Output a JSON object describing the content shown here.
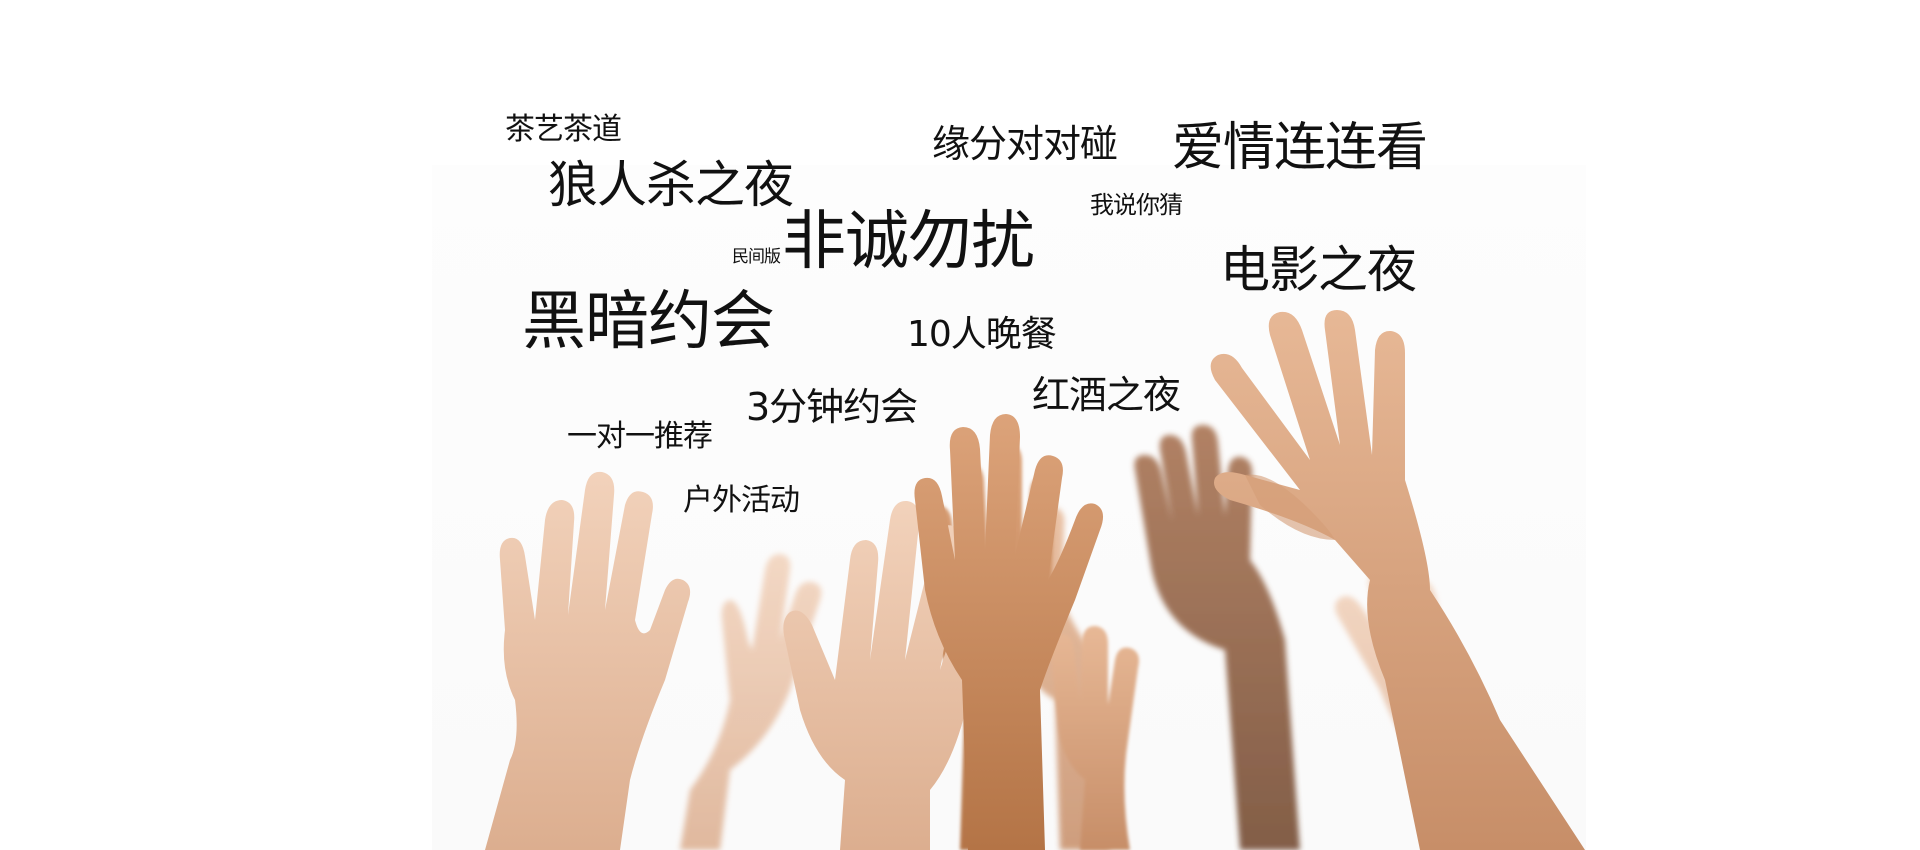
{
  "words": {
    "w1": "茶艺茶道",
    "w2": "狼人杀之夜",
    "w3": "缘分对对碰",
    "w4": "爱情连连看",
    "w5": "我说你猜",
    "w6": "民间版",
    "w7": "非诚勿扰",
    "w8": "电影之夜",
    "w9": "黑暗约会",
    "w10": "10人晚餐",
    "w11": "红酒之夜",
    "w12": "3分钟约会",
    "w13": "一对一推荐",
    "w14": "户外活动"
  },
  "colors": {
    "text": "#111111",
    "skin_light": "#e9c3a6",
    "skin_medium": "#d8a47f",
    "skin_tan": "#c98c62",
    "skin_dark": "#8a5a3c",
    "background": "#ffffff"
  }
}
